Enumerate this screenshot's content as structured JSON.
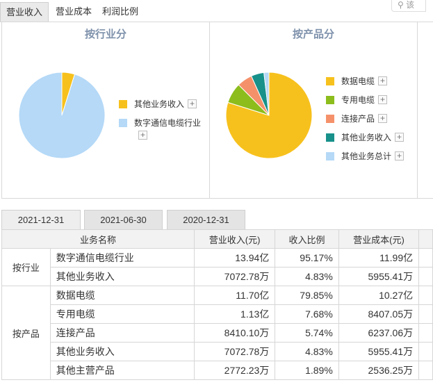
{
  "tabs": [
    "营业收入",
    "营业成本",
    "利润比例"
  ],
  "search": {
    "hint": "该"
  },
  "industry_panel": {
    "title": "按行业分",
    "legend": [
      {
        "label": "其他业务收入",
        "color": "#f7c11d"
      },
      {
        "label": "数字通信电缆行业",
        "color": "#b5d9f7"
      }
    ]
  },
  "product_panel": {
    "title": "按产品分",
    "legend": [
      {
        "label": "数据电缆",
        "color": "#f7c11d"
      },
      {
        "label": "专用电缆",
        "color": "#8cbd1c"
      },
      {
        "label": "连接产品",
        "color": "#f5916a"
      },
      {
        "label": "其他业务收入",
        "color": "#17918a"
      },
      {
        "label": "其他业务总计",
        "color": "#b5d9f7"
      }
    ]
  },
  "chart_data": [
    {
      "type": "pie",
      "title": "按行业分",
      "slices": [
        {
          "name": "数字通信电缆行业",
          "value": 95.17,
          "color": "#b5d9f7"
        },
        {
          "name": "其他业务收入",
          "value": 4.83,
          "color": "#f7c11d"
        }
      ]
    },
    {
      "type": "pie",
      "title": "按产品分",
      "slices": [
        {
          "name": "数据电缆",
          "value": 79.85,
          "color": "#f7c11d"
        },
        {
          "name": "专用电缆",
          "value": 7.68,
          "color": "#8cbd1c"
        },
        {
          "name": "连接产品",
          "value": 5.74,
          "color": "#f5916a"
        },
        {
          "name": "其他业务收入",
          "value": 4.83,
          "color": "#17918a"
        },
        {
          "name": "其他业务总计",
          "value": 1.89,
          "color": "#b5d9f7"
        }
      ]
    }
  ],
  "date_tabs": [
    "2021-12-31",
    "2021-06-30",
    "2020-12-31"
  ],
  "table": {
    "headers": [
      "业务名称",
      "营业收入(元)",
      "收入比例",
      "营业成本(元)"
    ],
    "groups": [
      {
        "label": "按行业",
        "rows": [
          [
            "数字通信电缆行业",
            "13.94亿",
            "95.17%",
            "11.99亿"
          ],
          [
            "其他业务收入",
            "7072.78万",
            "4.83%",
            "5955.41万"
          ]
        ]
      },
      {
        "label": "按产品",
        "rows": [
          [
            "数据电缆",
            "11.70亿",
            "79.85%",
            "10.27亿"
          ],
          [
            "专用电缆",
            "1.13亿",
            "7.68%",
            "8407.05万"
          ],
          [
            "连接产品",
            "8410.10万",
            "5.74%",
            "6237.06万"
          ],
          [
            "其他业务收入",
            "7072.78万",
            "4.83%",
            "5955.41万"
          ],
          [
            "其他主营产品",
            "2772.23万",
            "1.89%",
            "2536.25万"
          ]
        ]
      }
    ]
  }
}
